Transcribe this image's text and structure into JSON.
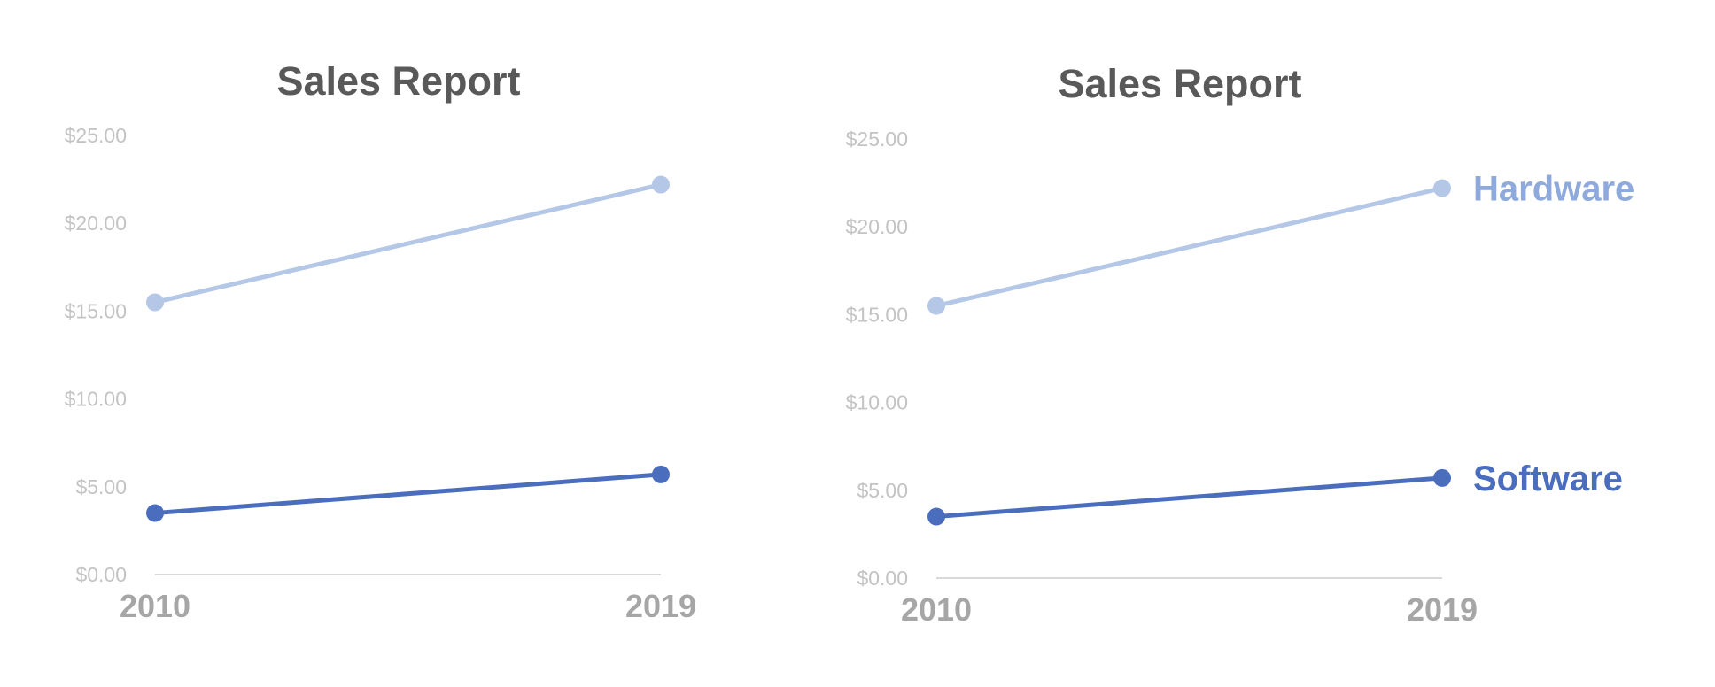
{
  "chart_data": [
    {
      "type": "line",
      "title": "Sales Report",
      "categories": [
        "2010",
        "2019"
      ],
      "ylim": [
        0,
        25
      ],
      "yticks": [
        "$0.00",
        "$5.00",
        "$10.00",
        "$15.00",
        "$20.00",
        "$25.00"
      ],
      "grid": false,
      "legend": "none",
      "series": [
        {
          "values": [
            15.5,
            22.2
          ],
          "color": "#b4c7e7"
        },
        {
          "values": [
            3.5,
            5.7
          ],
          "color": "#4a6ebd"
        }
      ]
    },
    {
      "type": "line",
      "title": "Sales Report",
      "categories": [
        "2010",
        "2019"
      ],
      "ylim": [
        0,
        25
      ],
      "yticks": [
        "$0.00",
        "$5.00",
        "$10.00",
        "$15.00",
        "$20.00",
        "$25.00"
      ],
      "grid": false,
      "legend": "direct-labels-right",
      "series": [
        {
          "name": "Hardware",
          "values": [
            15.5,
            22.2
          ],
          "color": "#b4c7e7",
          "label_color": "#8ea9db"
        },
        {
          "name": "Software",
          "values": [
            3.5,
            5.7
          ],
          "color": "#4a6ebd",
          "label_color": "#4a6ebd"
        }
      ]
    }
  ]
}
